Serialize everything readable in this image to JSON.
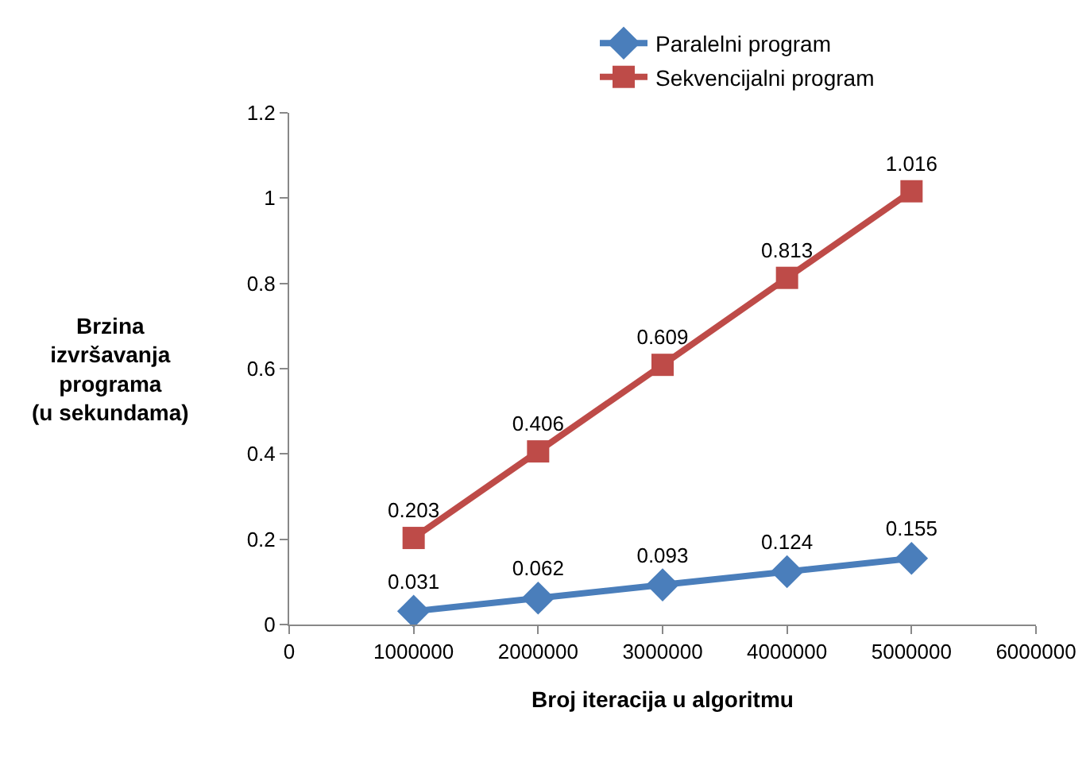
{
  "chart_data": {
    "type": "line",
    "xlabel": "Broj iteracija u algoritmu",
    "ylabel": "Brzina\nizvršavanja\nprograma\n(u sekundama)",
    "x": [
      1000000,
      2000000,
      3000000,
      4000000,
      5000000
    ],
    "series": [
      {
        "name": "Paralelni program",
        "color": "#4a7ebb",
        "marker": "diamond",
        "values": [
          0.031,
          0.062,
          0.093,
          0.124,
          0.155
        ]
      },
      {
        "name": "Sekvencijalni program",
        "color": "#be4b48",
        "marker": "square",
        "values": [
          0.203,
          0.406,
          0.609,
          0.813,
          1.016
        ]
      }
    ],
    "xlim": [
      0,
      6000000
    ],
    "xticks": [
      0,
      1000000,
      2000000,
      3000000,
      4000000,
      5000000,
      6000000
    ],
    "ylim": [
      0,
      1.2
    ],
    "yticks": [
      0,
      0.2,
      0.4,
      0.6,
      0.8,
      1,
      1.2
    ],
    "grid": false,
    "legend": "top",
    "data_labels": true,
    "line_style": "solid"
  }
}
